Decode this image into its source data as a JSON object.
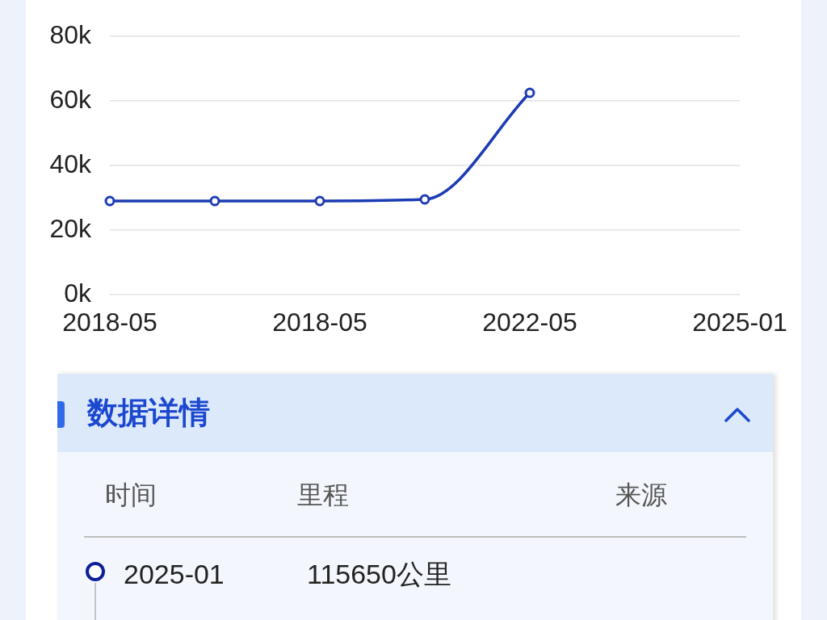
{
  "chart_data": {
    "type": "line",
    "categories": [
      "2018-05",
      null,
      "2018-05",
      null,
      "2022-05",
      null,
      "2025-01"
    ],
    "values": [
      29000,
      29000,
      29000,
      29500,
      62500,
      null,
      null
    ],
    "color": "#1c3cb4",
    "ylim": [
      0,
      80000
    ],
    "yticks": [
      {
        "value": 0,
        "label": "0k"
      },
      {
        "value": 20000,
        "label": "20k"
      },
      {
        "value": 40000,
        "label": "40k"
      },
      {
        "value": 60000,
        "label": "60k"
      },
      {
        "value": 80000,
        "label": "80k"
      }
    ],
    "grid": "y",
    "marker": "circle",
    "line_style": "solid",
    "annotations": [
      "数据详情",
      "时间",
      "里程",
      "来源",
      "2025-01",
      "115650公里"
    ]
  }
}
